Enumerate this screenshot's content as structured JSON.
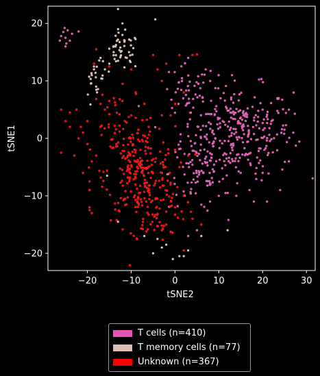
{
  "chart_data": {
    "type": "scatter",
    "title": "",
    "xlabel": "tSNE2",
    "ylabel": "tSNE1",
    "xlim": [
      -29,
      32
    ],
    "ylim": [
      -23,
      23
    ],
    "xticks": [
      -20,
      -10,
      0,
      10,
      20,
      30
    ],
    "yticks": [
      -20,
      -10,
      0,
      10,
      20
    ],
    "tick_labels_x": [
      "−20",
      "−10",
      "0",
      "10",
      "20",
      "30"
    ],
    "tick_labels_y": [
      "−20",
      "−10",
      "0",
      "10",
      "20"
    ],
    "grid": false,
    "legend_position": "below",
    "background": "#000000",
    "series": [
      {
        "name": "T cells (n=410)",
        "color": "#e356b4",
        "clusters": [
          {
            "cx": 14,
            "cy": 1,
            "sx": 8,
            "sy": 5,
            "n": 300
          },
          {
            "cx": 5,
            "cy": -6,
            "sx": 4,
            "sy": 4,
            "n": 70
          },
          {
            "cx": 3,
            "cy": 8,
            "sx": 4,
            "sy": 3,
            "n": 40
          }
        ],
        "points": [
          [
            -25.5,
            18.5
          ],
          [
            -25,
            17.5
          ],
          [
            -24.5,
            18.8
          ],
          [
            -24,
            17
          ],
          [
            -26,
            17.8
          ],
          [
            -25.2,
            19.2
          ],
          [
            -24.8,
            16.5
          ],
          [
            -26.3,
            17
          ],
          [
            -23.5,
            18.2
          ],
          [
            -22,
            18.6
          ],
          [
            -25,
            16
          ],
          [
            20,
            5
          ],
          [
            22,
            3
          ],
          [
            25,
            1.5
          ],
          [
            27,
            1
          ],
          [
            26,
            5
          ],
          [
            24,
            -9
          ],
          [
            21,
            -11
          ],
          [
            17,
            -9
          ],
          [
            18,
            -11
          ],
          [
            14,
            -10
          ],
          [
            8,
            -11
          ],
          [
            5,
            -16
          ],
          [
            3,
            -17
          ],
          [
            7,
            12
          ],
          [
            3,
            14
          ],
          [
            13,
            11
          ],
          [
            26,
            -4
          ],
          [
            20,
            -6
          ],
          [
            15,
            -6
          ],
          [
            10,
            -10
          ]
        ]
      },
      {
        "name": "T memory cells (n=77)",
        "color": "#ddbcb2",
        "clusters": [
          {
            "cx": -12,
            "cy": 15,
            "sx": 2.5,
            "sy": 2,
            "n": 40
          },
          {
            "cx": -18,
            "cy": 10,
            "sx": 1.5,
            "sy": 3,
            "n": 15
          }
        ],
        "points": [
          [
            -13,
            19
          ],
          [
            -12,
            18
          ],
          [
            -11.5,
            17
          ],
          [
            -14,
            16
          ],
          [
            -12,
            20
          ],
          [
            -13,
            22.5
          ],
          [
            -18.5,
            12.5
          ],
          [
            -19,
            11
          ],
          [
            -18,
            9
          ],
          [
            -17.8,
            8
          ],
          [
            -18.5,
            12
          ],
          [
            -17,
            14
          ],
          [
            -16,
            12
          ],
          [
            -15,
            13
          ],
          [
            -14,
            15
          ],
          [
            -13,
            13.5
          ],
          [
            -11,
            14
          ],
          [
            -10.5,
            15
          ],
          [
            -4.5,
            20.7
          ],
          [
            -4,
            -17.5
          ],
          [
            -7,
            -17
          ],
          [
            -13,
            -14.5
          ],
          [
            -15.5,
            -6.5
          ],
          [
            -0.5,
            -21
          ],
          [
            1,
            -20.5
          ],
          [
            2,
            -20.5
          ],
          [
            -2,
            -18.5
          ],
          [
            6,
            -17
          ],
          [
            12,
            -16
          ],
          [
            -5,
            -20
          ],
          [
            -3,
            -19
          ],
          [
            3,
            -19.5
          ]
        ]
      },
      {
        "name": "Unknown (n=367)",
        "color": "#ff0000",
        "clusters": [
          {
            "cx": -8,
            "cy": -6,
            "sx": 5,
            "sy": 5,
            "n": 230
          },
          {
            "cx": -4,
            "cy": -13,
            "sx": 4,
            "sy": 3,
            "n": 50
          },
          {
            "cx": -14,
            "cy": 2,
            "sx": 4,
            "sy": 4,
            "n": 40
          }
        ],
        "points": [
          [
            -26,
            5
          ],
          [
            -25,
            3
          ],
          [
            -24,
            4.5
          ],
          [
            -22,
            0
          ],
          [
            -21,
            1
          ],
          [
            -20,
            3
          ],
          [
            -22.5,
            5
          ],
          [
            -21.5,
            2
          ],
          [
            -24,
            2
          ],
          [
            -26,
            -2.5
          ],
          [
            -19.5,
            -7.5
          ],
          [
            -19.5,
            -9
          ],
          [
            -19.5,
            -12.5
          ],
          [
            -19.5,
            -12
          ],
          [
            -19,
            -13
          ],
          [
            -15,
            6.5
          ],
          [
            -14,
            7
          ],
          [
            -12,
            6.5
          ],
          [
            -10,
            4
          ],
          [
            -16,
            5
          ],
          [
            -17,
            6
          ],
          [
            -5,
            14.5
          ],
          [
            -4,
            12
          ],
          [
            -2,
            13
          ],
          [
            -3,
            10
          ],
          [
            1,
            14.5
          ],
          [
            4,
            14.5
          ],
          [
            5,
            14.6
          ],
          [
            -10,
            12
          ],
          [
            -18,
            15.5
          ],
          [
            -18.5,
            13
          ],
          [
            -15,
            12.5
          ],
          [
            2,
            8
          ],
          [
            0,
            6
          ],
          [
            -1,
            4
          ],
          [
            4,
            -14
          ],
          [
            2,
            -19.5
          ],
          [
            -3,
            -16
          ],
          [
            6,
            -15
          ],
          [
            -2,
            -15
          ],
          [
            -20,
            -1
          ],
          [
            -18,
            -3
          ],
          [
            -17,
            2
          ],
          [
            -23,
            -3
          ],
          [
            -19,
            -4
          ],
          [
            -21,
            -6
          ],
          [
            0,
            -12
          ],
          [
            2,
            -10
          ],
          [
            1,
            -5
          ],
          [
            3,
            -3
          ],
          [
            -1,
            -8
          ],
          [
            0,
            -2
          ],
          [
            -6,
            2
          ],
          [
            -9,
            8
          ],
          [
            -7,
            6
          ],
          [
            -3,
            4
          ]
        ]
      }
    ]
  }
}
